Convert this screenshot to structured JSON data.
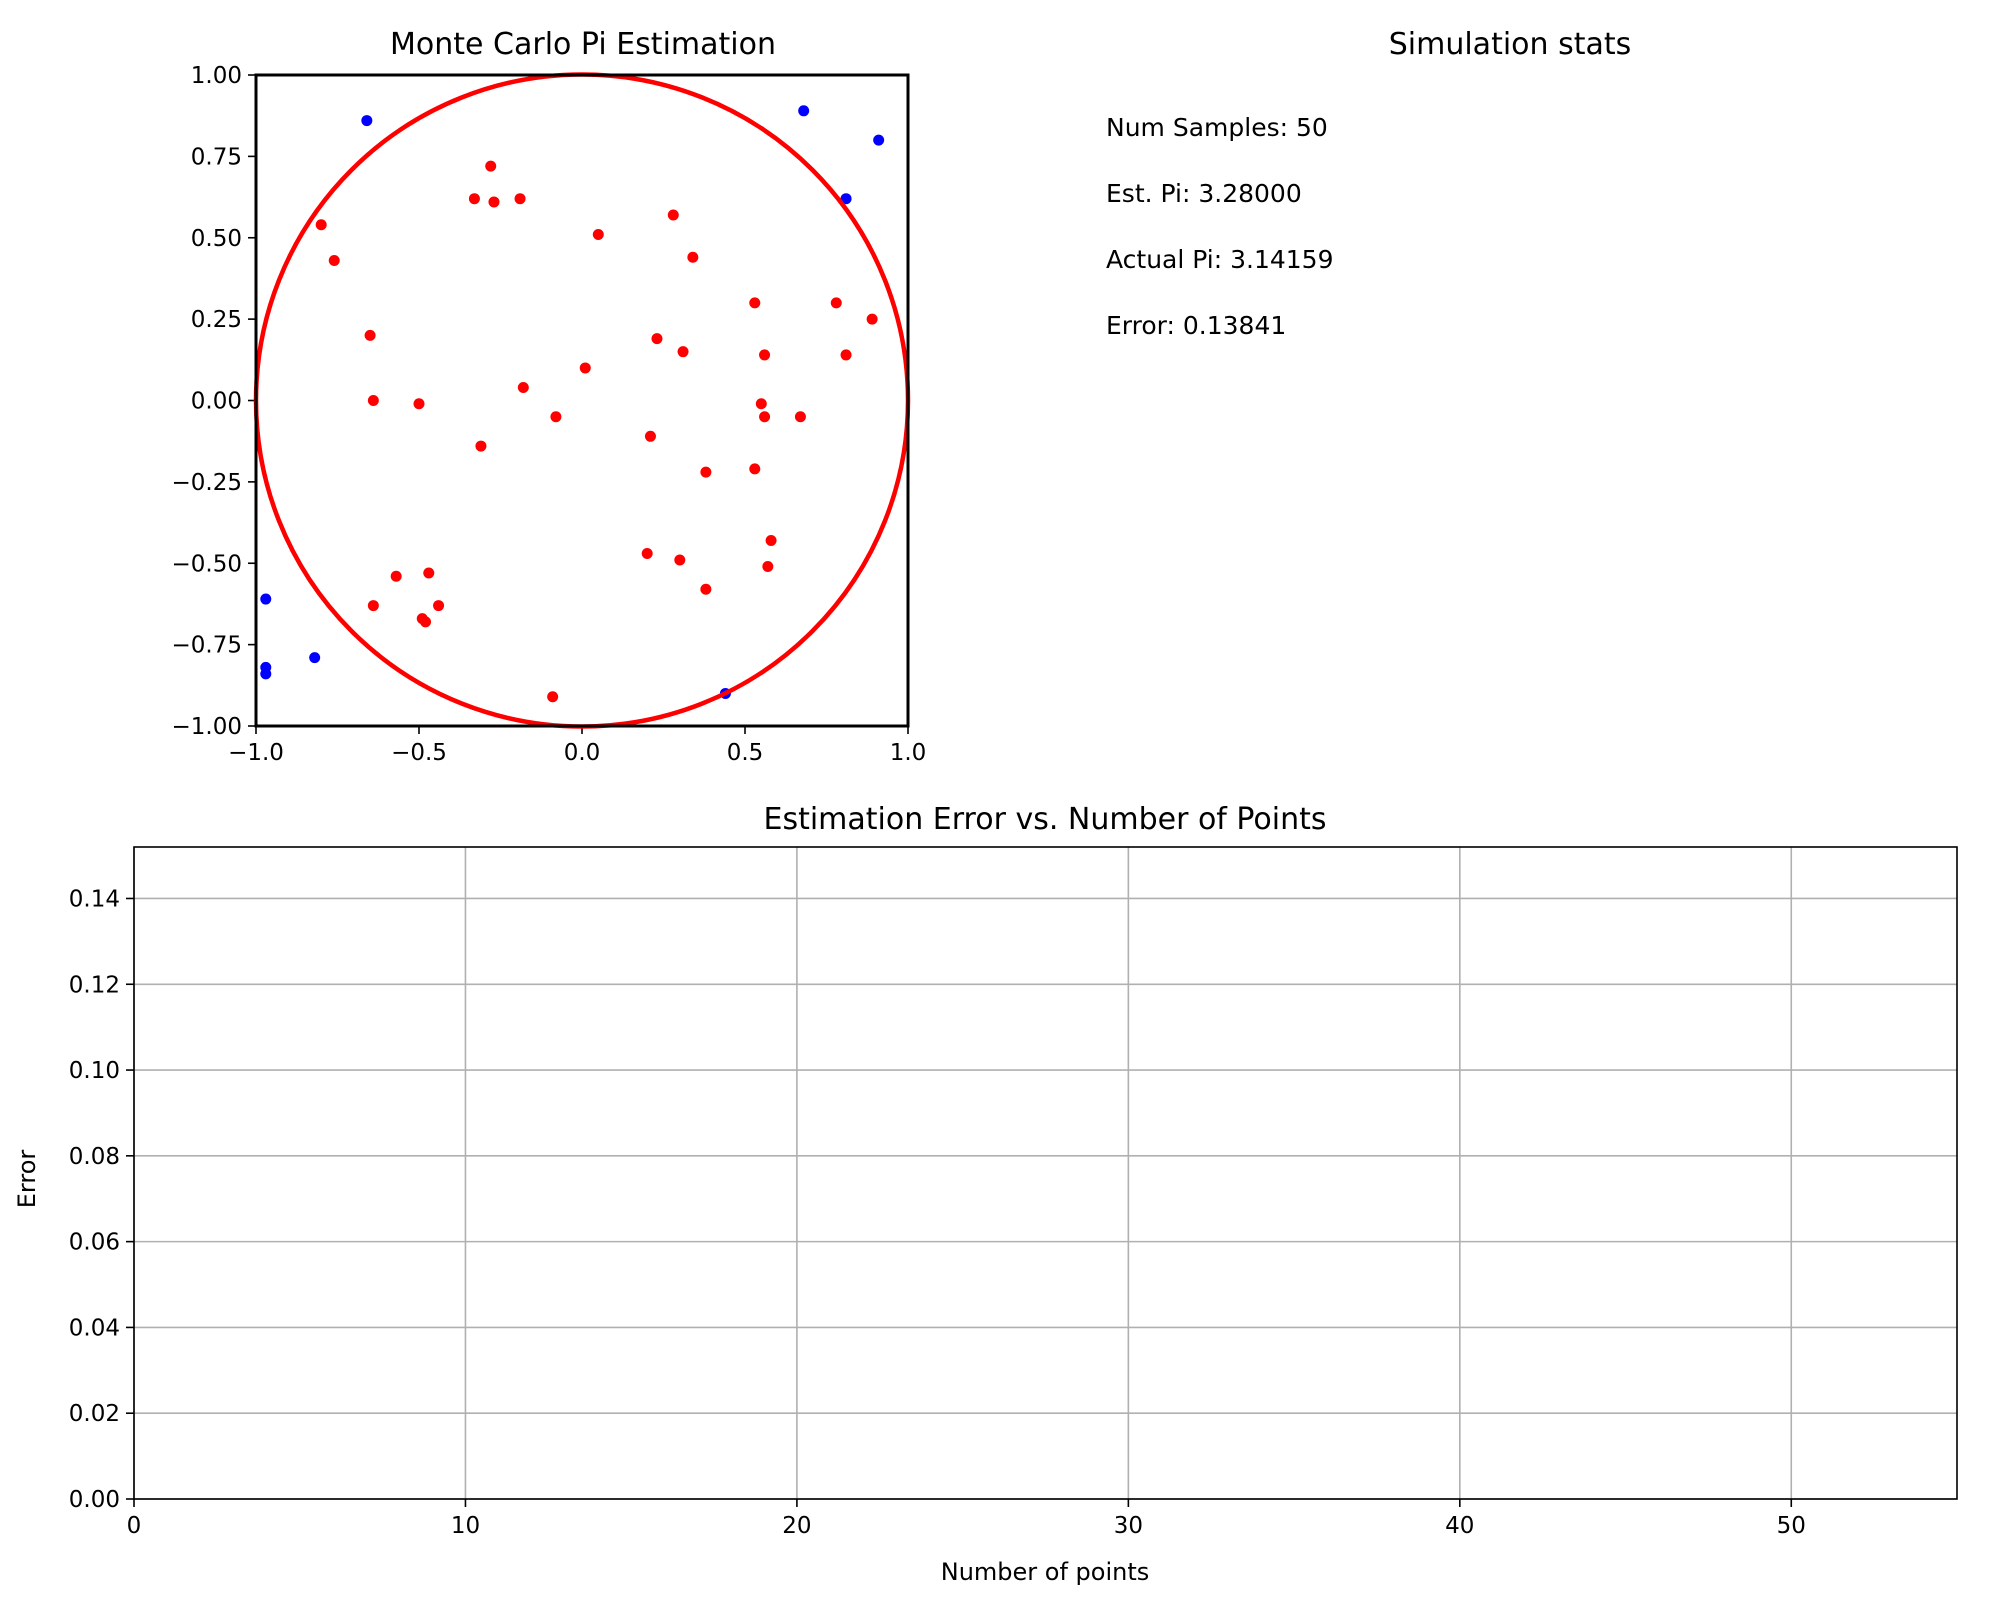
{
  "scatter_panel": {
    "title": "Monte Carlo Pi Estimation"
  },
  "stats_panel": {
    "title": "Simulation stats",
    "lines": [
      "Num Samples: 50",
      "Est. Pi: 3.28000",
      "Actual Pi: 3.14159",
      "Error: 0.13841"
    ]
  },
  "error_panel": {
    "title": "Estimation Error vs. Number of Points",
    "xlabel": "Number of points",
    "ylabel": "Error"
  },
  "colors": {
    "inside": "#ff0000",
    "outside": "#0000ff",
    "circle": "#ff0000",
    "grid": "#b0b0b0",
    "axes": "#000000"
  },
  "chart_data": [
    {
      "type": "scatter",
      "title": "Monte Carlo Pi Estimation",
      "xlim": [
        -1.0,
        1.0
      ],
      "ylim": [
        -1.0,
        1.0
      ],
      "xticks": [
        -1.0,
        -0.5,
        0.0,
        0.5,
        1.0
      ],
      "xtick_labels": [
        "−1.0",
        "−0.5",
        "0.0",
        "0.5",
        "1.0"
      ],
      "yticks": [
        1.0,
        0.75,
        0.5,
        0.25,
        0.0,
        -0.25,
        -0.5,
        -0.75,
        -1.0
      ],
      "ytick_labels": [
        "1.00",
        "0.75",
        "0.50",
        "0.25",
        "0.00",
        "−0.25",
        "−0.50",
        "−0.75",
        "−1.00"
      ],
      "grid": false,
      "circle": {
        "center": [
          0,
          0
        ],
        "radius": 1
      },
      "series": [
        {
          "color": "#ff0000",
          "points": [
            [
              -0.28,
              0.72
            ],
            [
              -0.33,
              0.62
            ],
            [
              -0.27,
              0.61
            ],
            [
              -0.19,
              0.62
            ],
            [
              -0.8,
              0.54
            ],
            [
              -0.76,
              0.43
            ],
            [
              0.28,
              0.57
            ],
            [
              0.34,
              0.44
            ],
            [
              0.05,
              0.51
            ],
            [
              0.53,
              0.3
            ],
            [
              0.78,
              0.3
            ],
            [
              0.89,
              0.25
            ],
            [
              -0.65,
              0.2
            ],
            [
              0.23,
              0.19
            ],
            [
              0.31,
              0.15
            ],
            [
              0.56,
              0.14
            ],
            [
              0.81,
              0.14
            ],
            [
              -0.64,
              0.0
            ],
            [
              -0.5,
              -0.01
            ],
            [
              -0.18,
              0.04
            ],
            [
              0.01,
              0.1
            ],
            [
              -0.08,
              -0.05
            ],
            [
              0.55,
              -0.01
            ],
            [
              0.56,
              -0.05
            ],
            [
              0.67,
              -0.05
            ],
            [
              -0.31,
              -0.14
            ],
            [
              0.21,
              -0.11
            ],
            [
              0.38,
              -0.22
            ],
            [
              0.53,
              -0.21
            ],
            [
              0.58,
              -0.43
            ],
            [
              0.57,
              -0.51
            ],
            [
              0.2,
              -0.47
            ],
            [
              0.3,
              -0.49
            ],
            [
              0.38,
              -0.58
            ],
            [
              -0.57,
              -0.54
            ],
            [
              -0.47,
              -0.53
            ],
            [
              -0.64,
              -0.63
            ],
            [
              -0.44,
              -0.63
            ],
            [
              -0.49,
              -0.67
            ],
            [
              -0.48,
              -0.68
            ],
            [
              -0.09,
              -0.91
            ]
          ]
        },
        {
          "color": "#0000ff",
          "points": [
            [
              -0.66,
              0.86
            ],
            [
              0.68,
              0.89
            ],
            [
              0.91,
              0.8
            ],
            [
              0.81,
              0.62
            ],
            [
              -0.97,
              -0.61
            ],
            [
              -0.97,
              -0.82
            ],
            [
              -0.97,
              -0.84
            ],
            [
              -0.82,
              -0.79
            ],
            [
              0.44,
              -0.9
            ]
          ]
        }
      ]
    },
    {
      "type": "line",
      "title": "Estimation Error vs. Number of Points",
      "xlabel": "Number of points",
      "ylabel": "Error",
      "xlim": [
        0,
        55
      ],
      "ylim": [
        0,
        0.152
      ],
      "xticks": [
        0,
        10,
        20,
        30,
        40,
        50
      ],
      "xtick_labels": [
        "0",
        "10",
        "20",
        "30",
        "40",
        "50"
      ],
      "yticks": [
        0,
        0.02,
        0.04,
        0.06,
        0.08,
        0.1,
        0.12,
        0.14
      ],
      "ytick_labels": [
        "0.00",
        "0.02",
        "0.04",
        "0.06",
        "0.08",
        "0.10",
        "0.12",
        "0.14"
      ],
      "grid": true,
      "series": []
    }
  ]
}
